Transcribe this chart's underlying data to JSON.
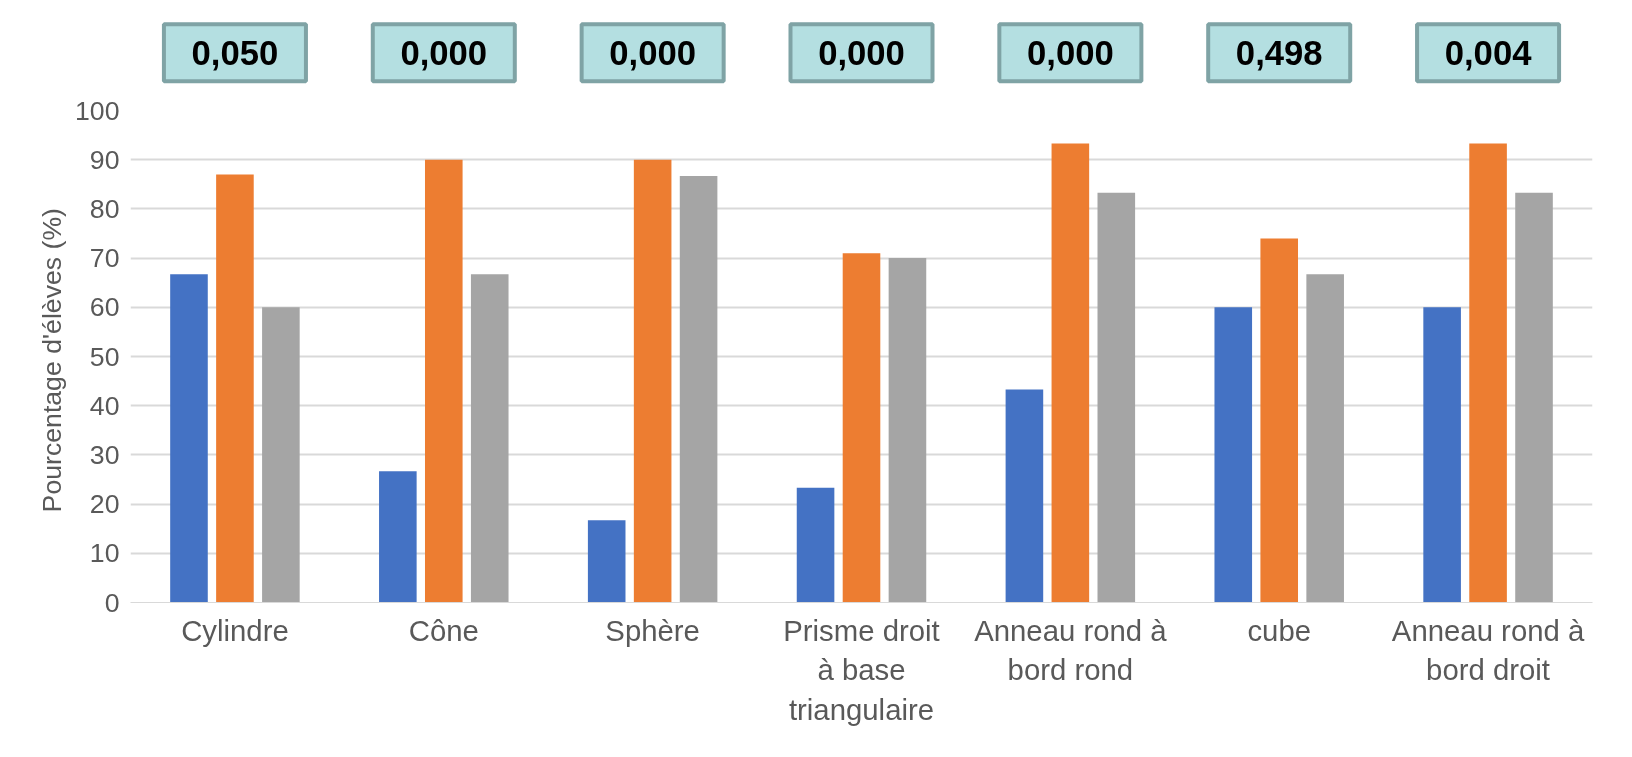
{
  "chart_data": {
    "type": "bar",
    "ylabel": "Pourcentage d'élèves  (%)",
    "categories": [
      "Cylindre",
      "Cône",
      "Sphère",
      "Prisme droit à base triangulaire",
      "Anneau rond à bord rond",
      "cube",
      "Anneau rond à bord droit"
    ],
    "series": [
      {
        "color": "#4472c4",
        "values": [
          66.7,
          26.7,
          16.7,
          23.3,
          43.3,
          60,
          60
        ]
      },
      {
        "color": "#ed7d31",
        "values": [
          87,
          90,
          90,
          71,
          93.3,
          74,
          93.3
        ]
      },
      {
        "color": "#a5a5a5",
        "values": [
          60,
          66.7,
          86.7,
          70,
          83.3,
          66.7,
          83.3
        ]
      }
    ],
    "ylim": [
      0,
      100
    ],
    "yticks": [
      0,
      10,
      20,
      30,
      40,
      50,
      60,
      70,
      80,
      90,
      100
    ],
    "grid": "y",
    "annotations": [
      "0,050",
      "0,000",
      "0,000",
      "0,000",
      "0,000",
      "0,498",
      "0,004"
    ]
  }
}
